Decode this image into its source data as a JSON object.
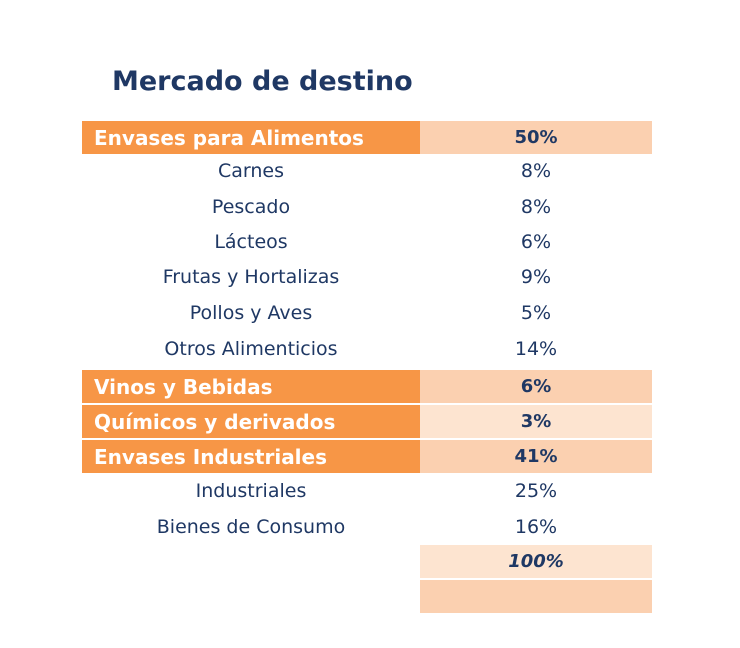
{
  "title": "Mercado de destino",
  "rows": [
    {
      "type": "cat",
      "label": "Envases para Alimentos",
      "value": "50%"
    },
    {
      "type": "sub",
      "label": "Carnes",
      "value": "8%"
    },
    {
      "type": "sub",
      "label": "Pescado",
      "value": "8%"
    },
    {
      "type": "sub",
      "label": "Lácteos",
      "value": "6%"
    },
    {
      "type": "sub",
      "label": "Frutas y Hortalizas",
      "value": "9%"
    },
    {
      "type": "sub",
      "label": "Pollos y Aves",
      "value": "5%"
    },
    {
      "type": "sub",
      "label": "Otros Alimenticios",
      "value": "14%"
    },
    {
      "type": "cat",
      "label": "Vinos y Bebidas",
      "value": "6%"
    },
    {
      "type": "cat",
      "label": "Químicos y derivados",
      "value": "3%"
    },
    {
      "type": "cat",
      "label": "Envases Industriales",
      "value": "41%"
    },
    {
      "type": "sub",
      "label": "Industriales",
      "value": "25%"
    },
    {
      "type": "sub",
      "label": "Bienes de Consumo",
      "value": "16%"
    },
    {
      "type": "total",
      "label": "",
      "value": "100%"
    },
    {
      "type": "blank",
      "label": "",
      "value": ""
    }
  ],
  "colors": {
    "category_fill": "#f79646",
    "value_fill_peach": "#fbd0b0",
    "value_fill_light": "#fde4d0",
    "text_navy": "#1f3864"
  }
}
